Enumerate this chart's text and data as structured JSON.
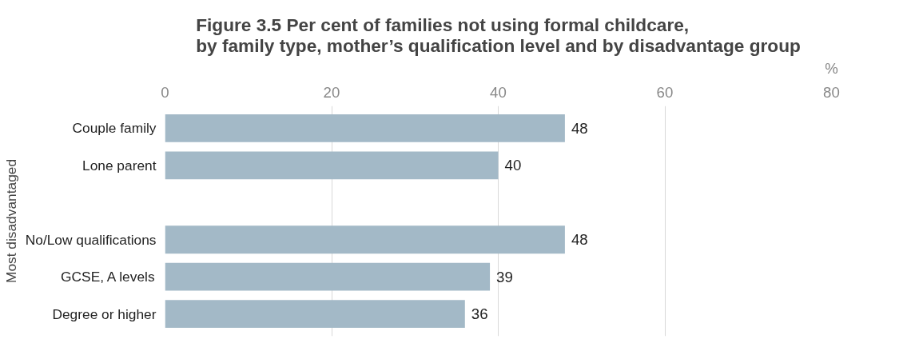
{
  "chart_data": {
    "type": "bar",
    "orientation": "horizontal",
    "title": "Figure 3.5  Per cent of families not using formal childcare,\nby family type, mother’s qualification level and by disadvantage group",
    "xlabel": "%",
    "ylabel": "Most disadvantaged",
    "categories": [
      "Couple family",
      "Lone parent",
      null,
      "No/Low qualifications",
      "GCSE, A levels",
      "Degree or higher"
    ],
    "values": [
      48,
      40,
      null,
      48,
      39,
      36
    ],
    "color": "#a3b9c7",
    "xlim": [
      0,
      80
    ],
    "xticks": [
      0,
      20,
      40,
      60,
      80
    ],
    "grid": "x",
    "data_labels": true
  }
}
